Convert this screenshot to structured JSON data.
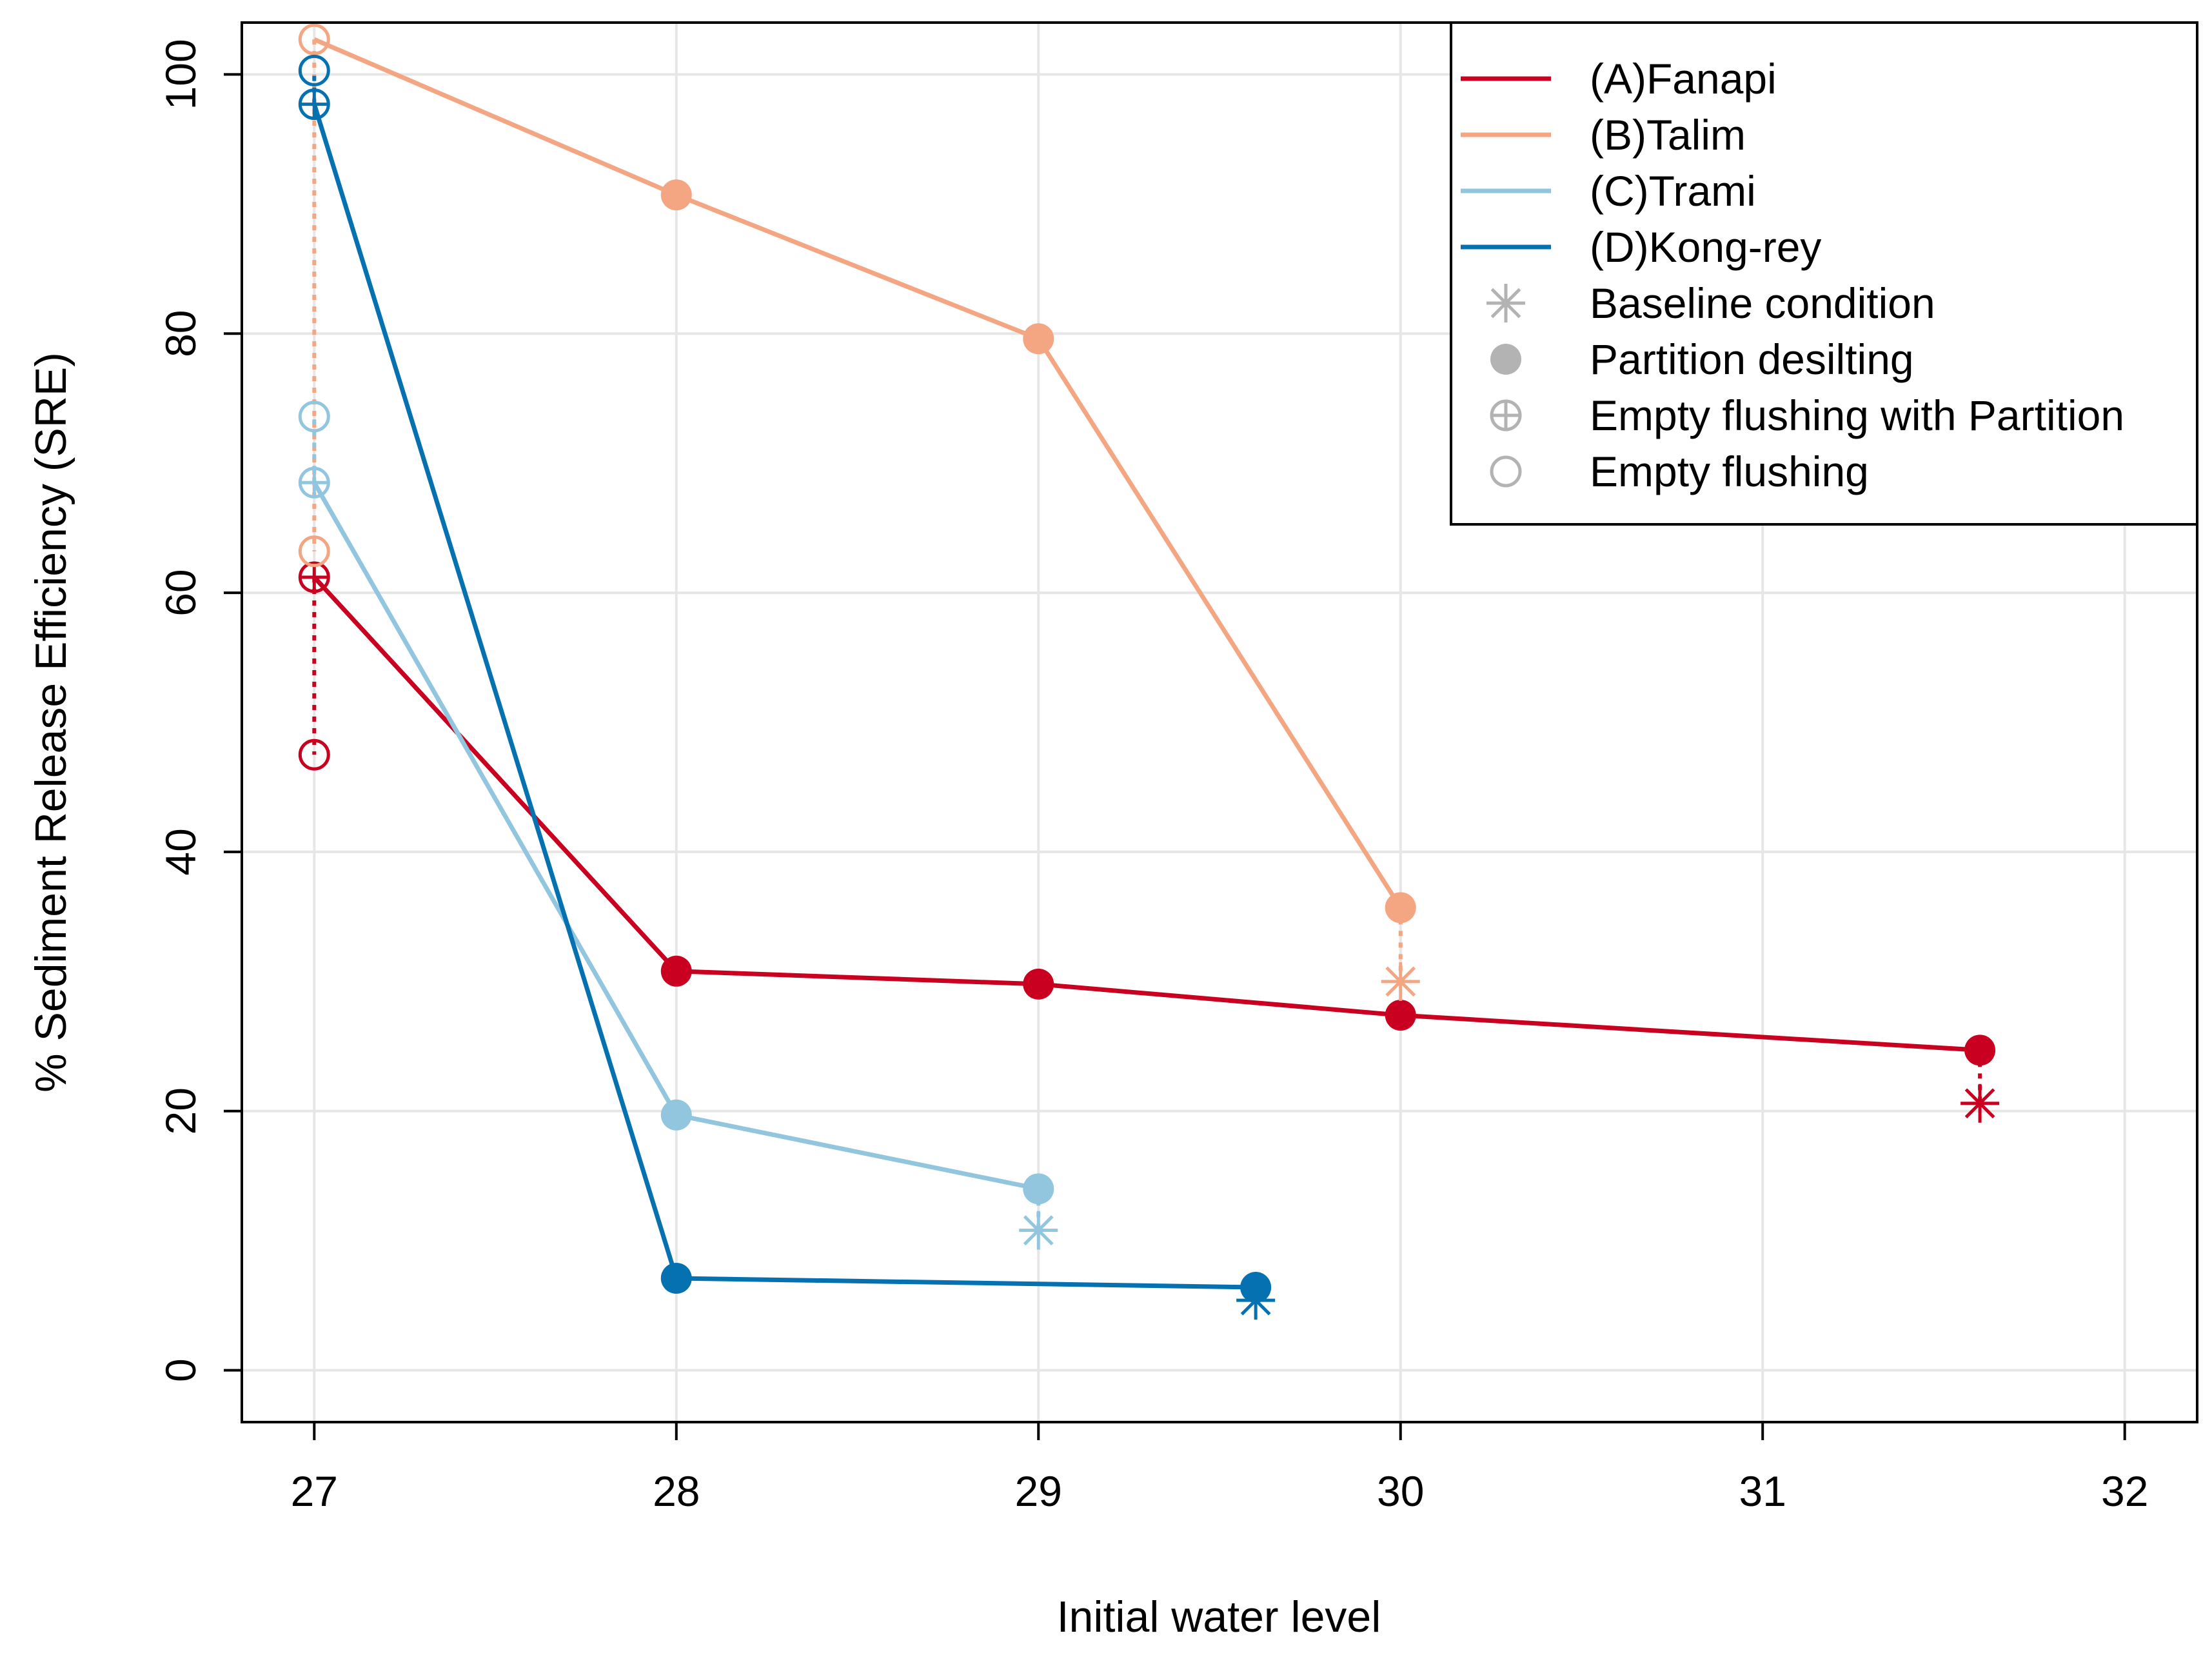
{
  "chart_data": {
    "type": "line",
    "title": "",
    "xlabel": "Initial water level",
    "ylabel": "% Sediment Release Efficiency (SRE)",
    "xlim": [
      26.8,
      32.2
    ],
    "ylim": [
      -4,
      104
    ],
    "xticks": [
      27,
      28,
      29,
      30,
      31,
      32
    ],
    "yticks": [
      0,
      20,
      40,
      60,
      80,
      100
    ],
    "grid": true,
    "legend_position": "top-right",
    "series": [
      {
        "name": "(A)Fanapi",
        "color": "#ca0020",
        "partition_desilting": [
          [
            27,
            61.2
          ],
          [
            28,
            30.8
          ],
          [
            29,
            29.8
          ],
          [
            30,
            27.4
          ],
          [
            31.6,
            24.7
          ]
        ],
        "empty_flushing_with_partition": [
          [
            27,
            61.2
          ]
        ],
        "empty_flushing": [
          [
            27,
            47.5
          ]
        ],
        "baseline": [
          [
            31.6,
            20.6
          ]
        ]
      },
      {
        "name": "(B)Talim",
        "color": "#f4a582",
        "partition_desilting": [
          [
            27,
            102.7
          ],
          [
            28,
            90.7
          ],
          [
            29,
            79.6
          ],
          [
            30,
            35.7
          ]
        ],
        "empty_flushing_with_partition": [],
        "empty_flushing": [
          [
            27,
            102.7
          ],
          [
            27,
            63.2
          ]
        ],
        "baseline": [
          [
            30,
            30.0
          ]
        ]
      },
      {
        "name": "(C)Trami",
        "color": "#92c5de",
        "partition_desilting": [
          [
            27,
            68.5
          ],
          [
            28,
            19.7
          ],
          [
            29,
            14.0
          ]
        ],
        "empty_flushing_with_partition": [
          [
            27,
            68.5
          ]
        ],
        "empty_flushing": [
          [
            27,
            73.6
          ]
        ],
        "baseline": [
          [
            29,
            10.8
          ]
        ]
      },
      {
        "name": "(D)Kong-rey",
        "color": "#0571b0",
        "partition_desilting": [
          [
            27,
            97.7
          ],
          [
            28,
            7.1
          ],
          [
            29.6,
            6.4
          ]
        ],
        "empty_flushing_with_partition": [
          [
            27,
            97.7
          ]
        ],
        "empty_flushing": [
          [
            27,
            100.3
          ]
        ],
        "baseline": [
          [
            29.6,
            5.4
          ]
        ]
      }
    ],
    "legend": {
      "entries": [
        {
          "label": "(A)Fanapi",
          "kind": "line",
          "color": "#ca0020"
        },
        {
          "label": "(B)Talim",
          "kind": "line",
          "color": "#f4a582"
        },
        {
          "label": "(C)Trami",
          "kind": "line",
          "color": "#92c5de"
        },
        {
          "label": "(D)Kong-rey",
          "kind": "line",
          "color": "#0571b0"
        },
        {
          "label": "Baseline condition",
          "kind": "star",
          "color": "#b3b3b3"
        },
        {
          "label": "Partition desilting",
          "kind": "filled",
          "color": "#b3b3b3"
        },
        {
          "label": "Empty flushing with Partition",
          "kind": "circleplus",
          "color": "#b3b3b3"
        },
        {
          "label": "Empty flushing",
          "kind": "circle",
          "color": "#b3b3b3"
        }
      ]
    }
  }
}
